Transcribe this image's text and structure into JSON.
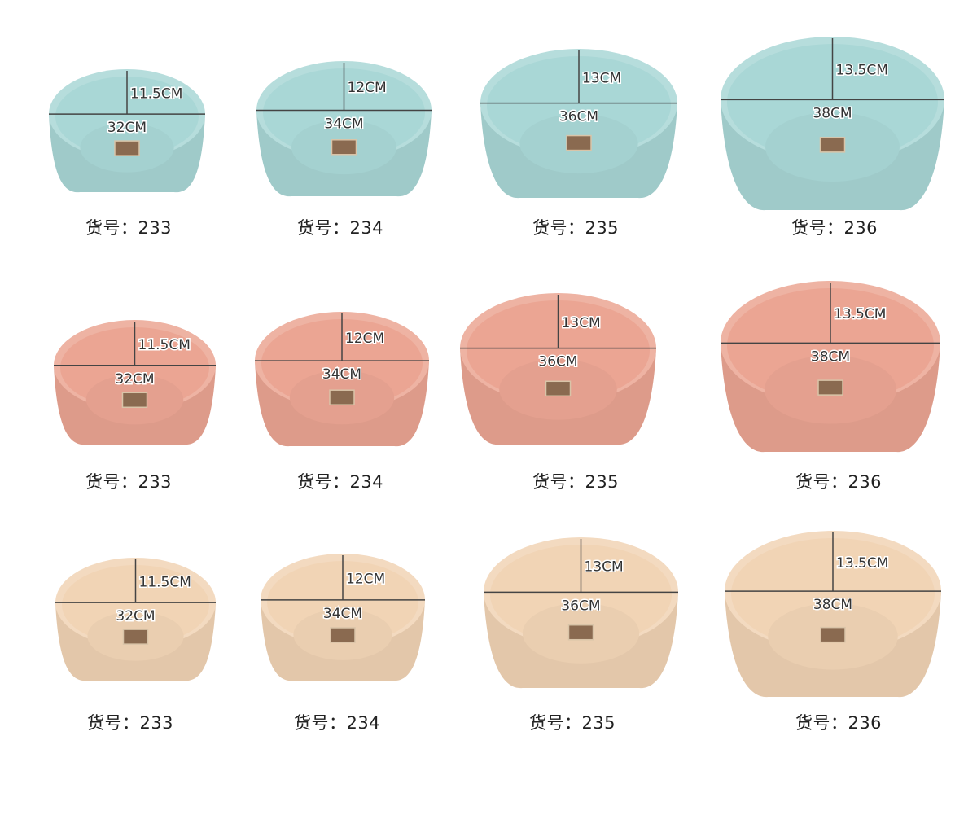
{
  "label_prefix": "货号：",
  "colors": {
    "blue": "#a9d7d6",
    "pink": "#eba593",
    "beige": "#f1d4b5"
  },
  "rows": [
    {
      "color": "blue",
      "items": [
        {
          "code": "233",
          "diameter": "32CM",
          "height": "11.5CM"
        },
        {
          "code": "234",
          "diameter": "34CM",
          "height": "12CM"
        },
        {
          "code": "235",
          "diameter": "36CM",
          "height": "13CM"
        },
        {
          "code": "236",
          "diameter": "38CM",
          "height": "13.5CM"
        }
      ]
    },
    {
      "color": "pink",
      "items": [
        {
          "code": "233",
          "diameter": "32CM",
          "height": "11.5CM"
        },
        {
          "code": "234",
          "diameter": "34CM",
          "height": "12CM"
        },
        {
          "code": "235",
          "diameter": "36CM",
          "height": "13CM"
        },
        {
          "code": "236",
          "diameter": "38CM",
          "height": "13.5CM"
        }
      ]
    },
    {
      "color": "beige",
      "items": [
        {
          "code": "233",
          "diameter": "32CM",
          "height": "11.5CM"
        },
        {
          "code": "234",
          "diameter": "34CM",
          "height": "12CM"
        },
        {
          "code": "235",
          "diameter": "36CM",
          "height": "13CM"
        },
        {
          "code": "236",
          "diameter": "38CM",
          "height": "13.5CM"
        }
      ]
    }
  ]
}
